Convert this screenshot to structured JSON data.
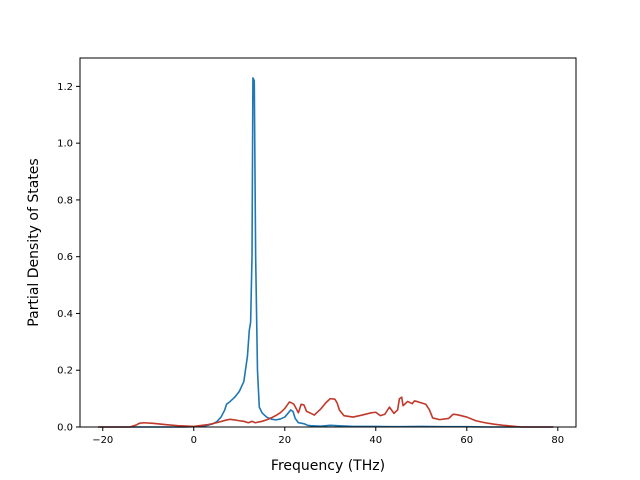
{
  "chart_data": {
    "type": "line",
    "title": "",
    "xlabel": "Frequency (THz)",
    "ylabel": "Partial Density of States",
    "xlim": [
      -25,
      84
    ],
    "ylim": [
      0,
      1.3
    ],
    "x_ticks": [
      -20,
      0,
      20,
      40,
      60,
      80
    ],
    "x_tick_labels": [
      "−20",
      "0",
      "20",
      "40",
      "60",
      "80"
    ],
    "y_ticks": [
      0.0,
      0.2,
      0.4,
      0.6,
      0.8,
      1.0,
      1.2
    ],
    "y_tick_labels": [
      "0.0",
      "0.2",
      "0.4",
      "0.6",
      "0.8",
      "1.0",
      "1.2"
    ],
    "grid": false,
    "legend": "none",
    "series": [
      {
        "color": "#1f77b4",
        "points": [
          [
            -21,
            0
          ],
          [
            -10,
            0
          ],
          [
            -2,
            0
          ],
          [
            0,
            0.001
          ],
          [
            2,
            0.003
          ],
          [
            3,
            0.006
          ],
          [
            4,
            0.01
          ],
          [
            5,
            0.018
          ],
          [
            6,
            0.035
          ],
          [
            6.8,
            0.06
          ],
          [
            7.2,
            0.08
          ],
          [
            8,
            0.09
          ],
          [
            9,
            0.105
          ],
          [
            10,
            0.125
          ],
          [
            11,
            0.16
          ],
          [
            11.8,
            0.25
          ],
          [
            12.2,
            0.34
          ],
          [
            12.5,
            0.37
          ],
          [
            12.8,
            0.6
          ],
          [
            13.0,
            1.23
          ],
          [
            13.3,
            1.22
          ],
          [
            13.6,
            0.6
          ],
          [
            14.0,
            0.2
          ],
          [
            14.4,
            0.07
          ],
          [
            15,
            0.05
          ],
          [
            16,
            0.035
          ],
          [
            17,
            0.028
          ],
          [
            18,
            0.025
          ],
          [
            19,
            0.028
          ],
          [
            20,
            0.035
          ],
          [
            20.8,
            0.05
          ],
          [
            21.3,
            0.06
          ],
          [
            21.8,
            0.055
          ],
          [
            22.3,
            0.03
          ],
          [
            23,
            0.015
          ],
          [
            23.8,
            0.013
          ],
          [
            24.5,
            0.01
          ],
          [
            25,
            0.006
          ],
          [
            26,
            0.004
          ],
          [
            28,
            0.003
          ],
          [
            30,
            0.006
          ],
          [
            32,
            0.004
          ],
          [
            35,
            0.002
          ],
          [
            40,
            0.002
          ],
          [
            45,
            0.001
          ],
          [
            50,
            0.002
          ],
          [
            55,
            0.001
          ],
          [
            60,
            0.001
          ],
          [
            65,
            0
          ],
          [
            70,
            0
          ],
          [
            79,
            0
          ]
        ]
      },
      {
        "color": "#c0392b",
        "points": [
          [
            -21,
            0
          ],
          [
            -14,
            0
          ],
          [
            -12.5,
            0.008
          ],
          [
            -12,
            0.013
          ],
          [
            -11,
            0.015
          ],
          [
            -9,
            0.013
          ],
          [
            -6,
            0.008
          ],
          [
            -3,
            0.004
          ],
          [
            0,
            0.002
          ],
          [
            3,
            0.008
          ],
          [
            5,
            0.015
          ],
          [
            7,
            0.024
          ],
          [
            8,
            0.027
          ],
          [
            9,
            0.025
          ],
          [
            10,
            0.022
          ],
          [
            11,
            0.02
          ],
          [
            12,
            0.015
          ],
          [
            12.8,
            0.02
          ],
          [
            13.5,
            0.015
          ],
          [
            15,
            0.02
          ],
          [
            16,
            0.025
          ],
          [
            17,
            0.032
          ],
          [
            18,
            0.04
          ],
          [
            19,
            0.05
          ],
          [
            20,
            0.065
          ],
          [
            21,
            0.088
          ],
          [
            21.5,
            0.085
          ],
          [
            22,
            0.08
          ],
          [
            23,
            0.05
          ],
          [
            23.6,
            0.08
          ],
          [
            24.2,
            0.078
          ],
          [
            24.8,
            0.055
          ],
          [
            25.5,
            0.05
          ],
          [
            26.5,
            0.042
          ],
          [
            27,
            0.05
          ],
          [
            28,
            0.065
          ],
          [
            29,
            0.085
          ],
          [
            30,
            0.1
          ],
          [
            31,
            0.098
          ],
          [
            31.5,
            0.085
          ],
          [
            32,
            0.06
          ],
          [
            33,
            0.04
          ],
          [
            35,
            0.035
          ],
          [
            37,
            0.042
          ],
          [
            39,
            0.05
          ],
          [
            40,
            0.052
          ],
          [
            41,
            0.04
          ],
          [
            42,
            0.045
          ],
          [
            43,
            0.07
          ],
          [
            44,
            0.048
          ],
          [
            44.8,
            0.06
          ],
          [
            45.2,
            0.1
          ],
          [
            45.7,
            0.105
          ],
          [
            46,
            0.075
          ],
          [
            47,
            0.09
          ],
          [
            48,
            0.082
          ],
          [
            48.5,
            0.092
          ],
          [
            49,
            0.09
          ],
          [
            50,
            0.085
          ],
          [
            51,
            0.08
          ],
          [
            51.8,
            0.06
          ],
          [
            52.5,
            0.032
          ],
          [
            54,
            0.026
          ],
          [
            56,
            0.03
          ],
          [
            57,
            0.045
          ],
          [
            58,
            0.043
          ],
          [
            60,
            0.035
          ],
          [
            62,
            0.022
          ],
          [
            64,
            0.015
          ],
          [
            66,
            0.01
          ],
          [
            68,
            0.006
          ],
          [
            70,
            0.003
          ],
          [
            72,
            0
          ],
          [
            79,
            0
          ]
        ]
      }
    ]
  }
}
